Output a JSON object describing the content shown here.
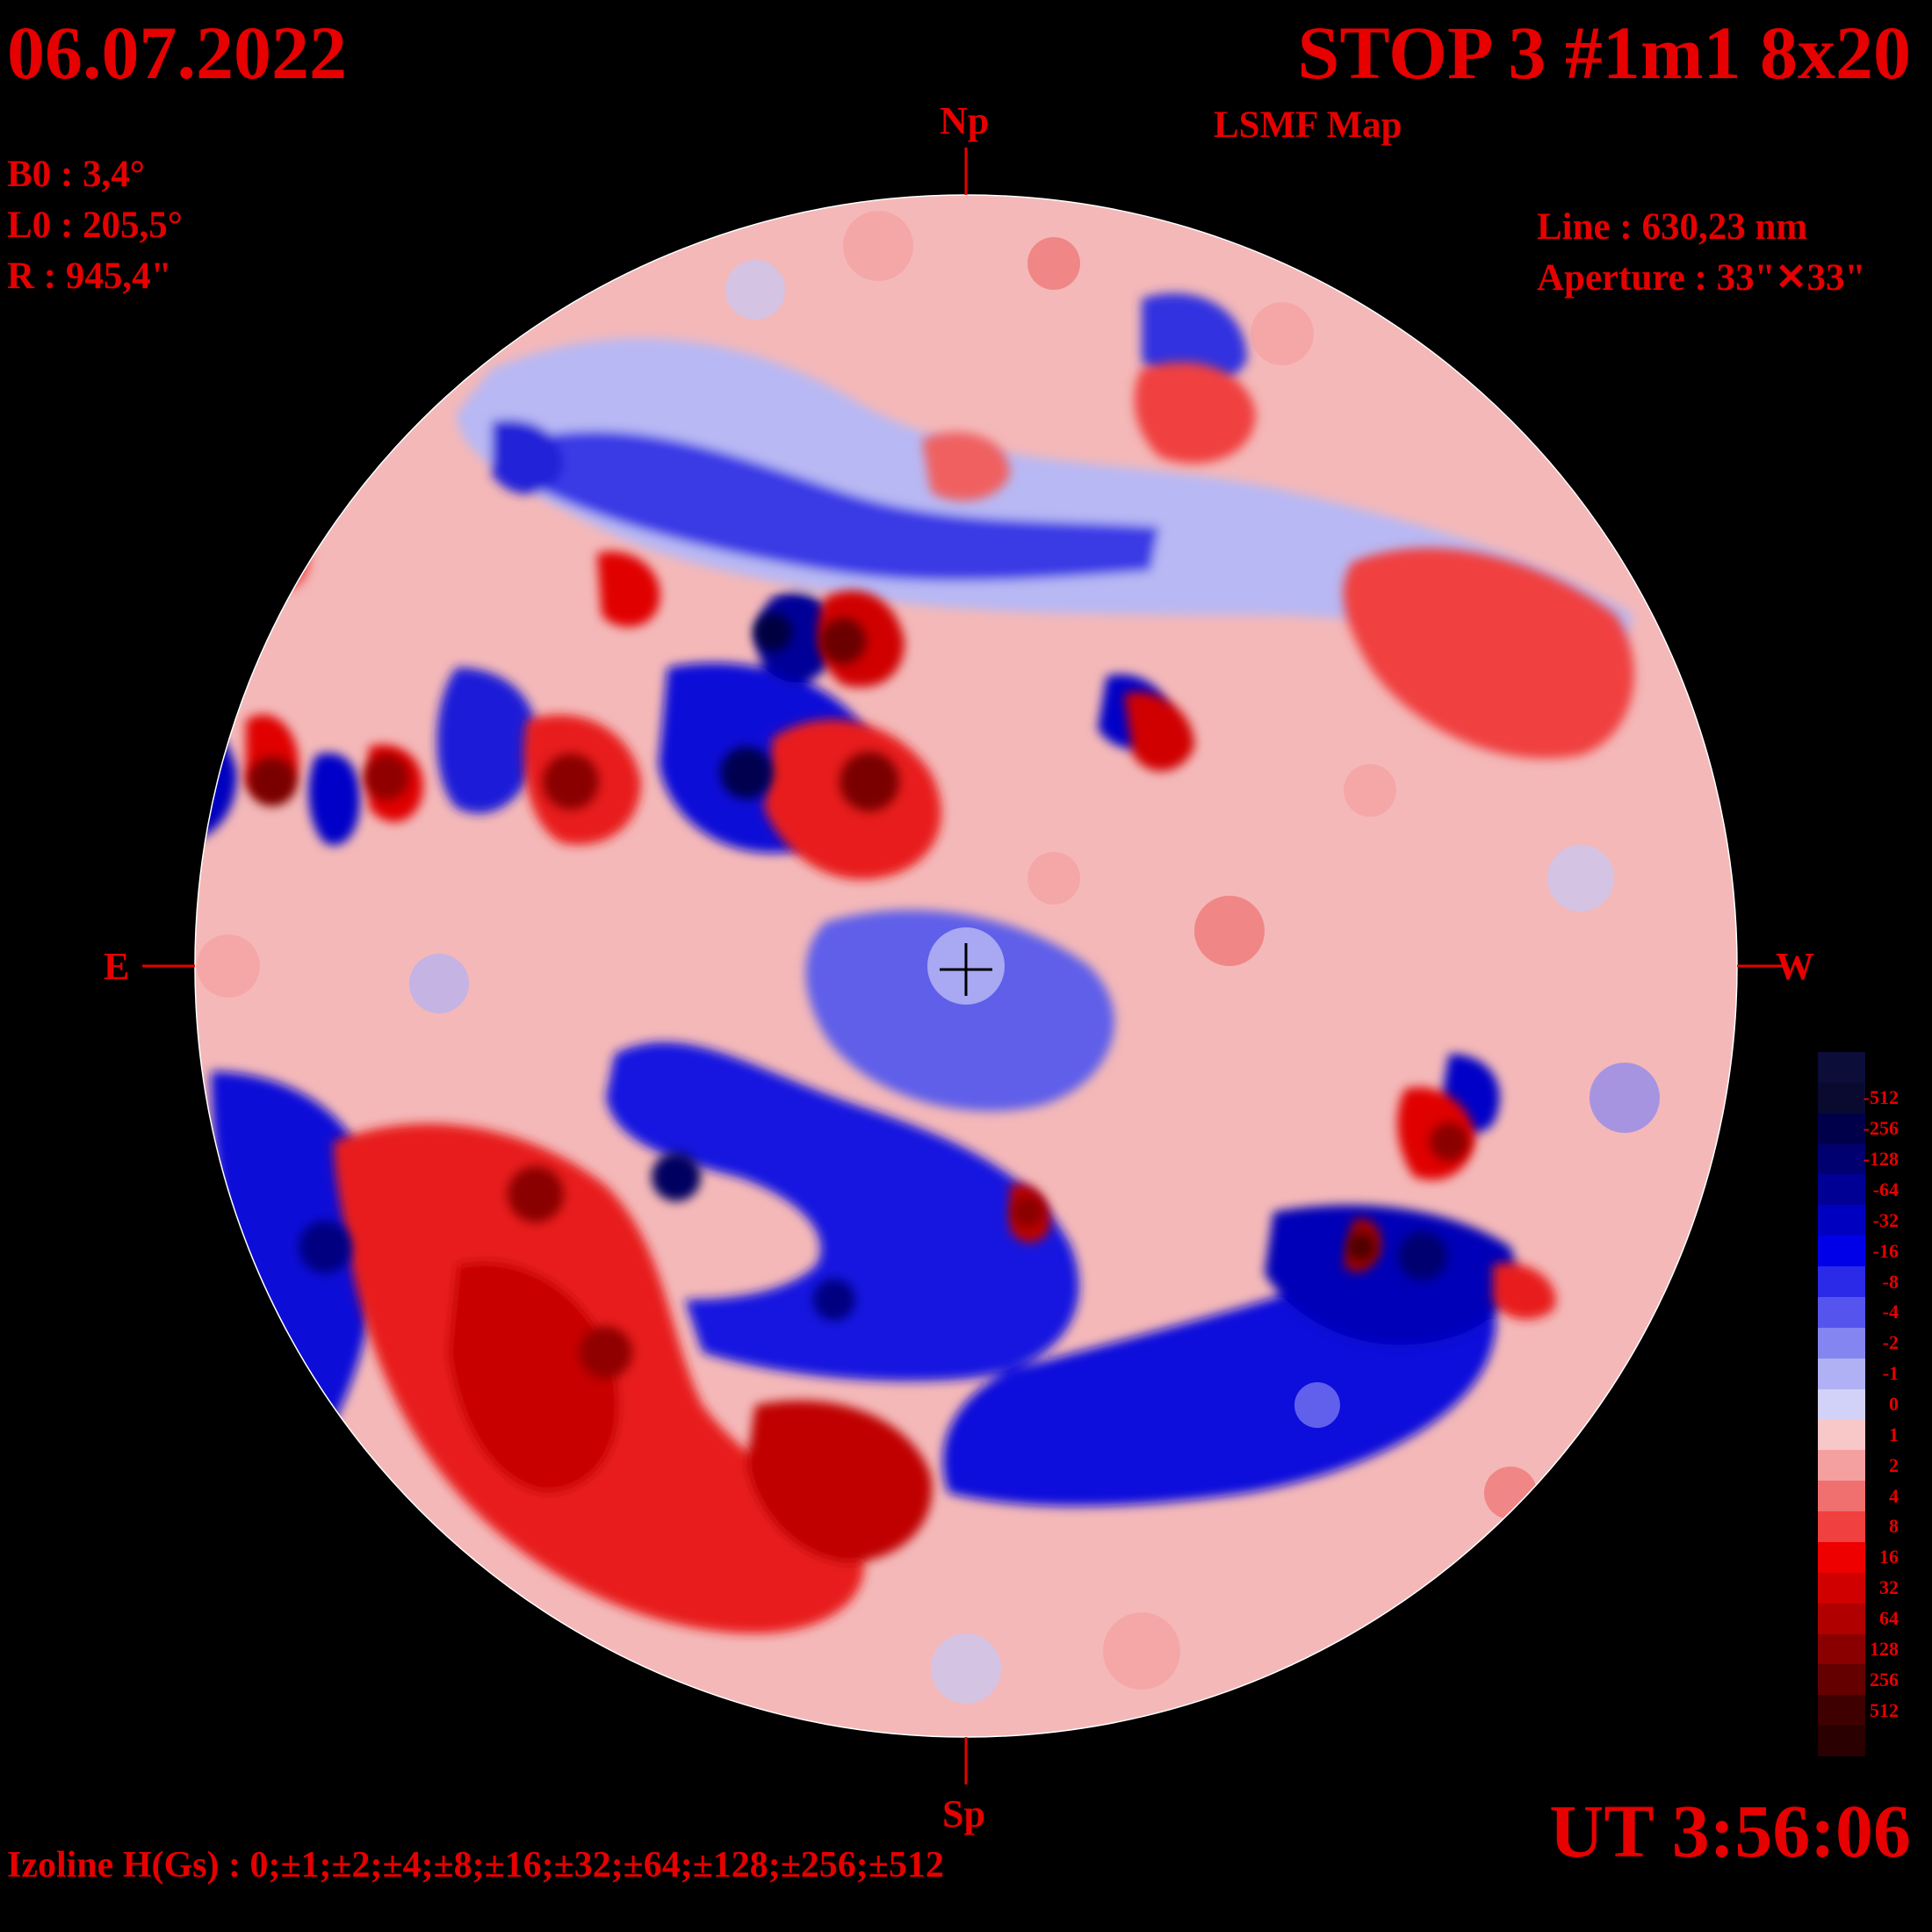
{
  "header": {
    "date": "06.07.2022",
    "title": "STOP 3 #1m1 8x20",
    "subtitle": "LSMF  Map"
  },
  "params": {
    "b0": "B0 : 3,4°",
    "l0": "L0 : 205,5°",
    "r": "R  : 945,4\""
  },
  "instrument": {
    "line": "Line :  630,23 nm",
    "aperture": "Aperture : 33\"✕33\""
  },
  "directions": {
    "north": "Np",
    "south": "Sp",
    "east": "E",
    "west": "W"
  },
  "time": "UT 3:56:06",
  "izoline": "Izoline H(Gs) : 0;±1;±2;±4;±8;±16;±32;±64;±128;±256;±512",
  "colorbar": {
    "levels": [
      {
        "label": "-512",
        "color": "#0a0a30"
      },
      {
        "label": "-256",
        "color": "#00004a"
      },
      {
        "label": "-128",
        "color": "#000070"
      },
      {
        "label": "-64",
        "color": "#000095"
      },
      {
        "label": "-32",
        "color": "#0000c0"
      },
      {
        "label": "-16",
        "color": "#0000e8"
      },
      {
        "label": "-8",
        "color": "#2a2ae8"
      },
      {
        "label": "-4",
        "color": "#5555ee"
      },
      {
        "label": "-2",
        "color": "#8585f2"
      },
      {
        "label": "-1",
        "color": "#b0b0f5"
      },
      {
        "label": "0",
        "color": "#d2d2f8"
      },
      {
        "label": "1",
        "color": "#f8c8c8"
      },
      {
        "label": "2",
        "color": "#f5a0a0"
      },
      {
        "label": "4",
        "color": "#f07070"
      },
      {
        "label": "8",
        "color": "#f04040"
      },
      {
        "label": "16",
        "color": "#ee0000"
      },
      {
        "label": "32",
        "color": "#d00000"
      },
      {
        "label": "64",
        "color": "#b00000"
      },
      {
        "label": "128",
        "color": "#8a0000"
      },
      {
        "label": "256",
        "color": "#640000"
      },
      {
        "label": "512",
        "color": "#3e0000"
      }
    ],
    "top_color": "#0d0d3a",
    "bottom_color": "#2a0000"
  },
  "disk": {
    "negative_color": "#1515e0",
    "positive_color": "#e81a1a",
    "background_color": "#f2b5b5",
    "outline_color": "#ffffff"
  }
}
